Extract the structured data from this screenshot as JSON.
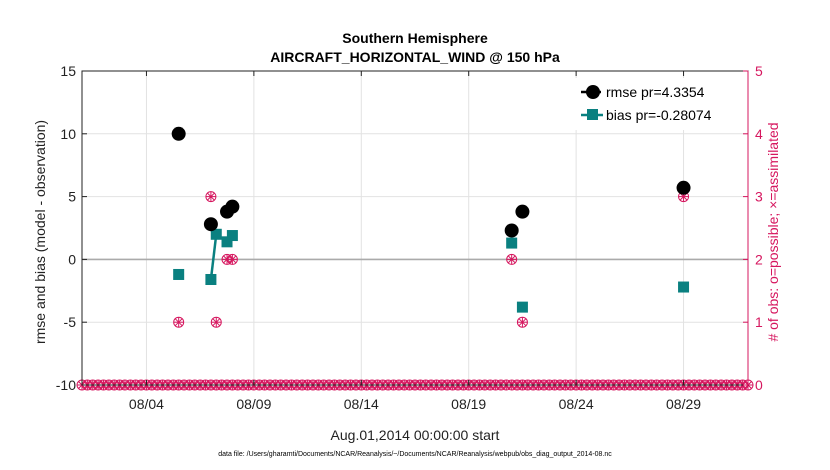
{
  "chart_data": {
    "type": "scatter",
    "title": "Southern Hemisphere",
    "subtitle": "AIRCRAFT_HORIZONTAL_WIND @ 150 hPa",
    "xlabel": "Aug.01,2014 00:00:00 start",
    "ylabel": "rmse and bias (model - observation)",
    "ylabel_right": "# of obs: o=possible; ×=assimilated",
    "footer": "data file: /Users/gharamti/Documents/NCAR/Reanalysis/~/Documents/NCAR/Reanalysis/webpub/obs_diag_output_2014-08.nc",
    "xlim": [
      1,
      32
    ],
    "ylim": [
      -10,
      15
    ],
    "ylim_right": [
      0,
      5
    ],
    "x_ticks": [
      4,
      9,
      14,
      19,
      24,
      29
    ],
    "x_tick_labels": [
      "08/04",
      "08/09",
      "08/14",
      "08/19",
      "08/24",
      "08/29"
    ],
    "y_ticks": [
      15,
      10,
      5,
      0,
      -5,
      -10
    ],
    "y_tick_labels": [
      "15",
      "10",
      "5",
      "0",
      "-5",
      "-10"
    ],
    "y_ticks_right": [
      5,
      4,
      3,
      2,
      1,
      0
    ],
    "y_tick_labels_right": [
      "5",
      "4",
      "3",
      "2",
      "1",
      "0"
    ],
    "grid": true,
    "zero_line": 0,
    "legend_position": "top-right",
    "series": [
      {
        "name": "rmse pr=4.3354",
        "color": "#000000",
        "marker": "circle",
        "points": [
          {
            "x": 5.5,
            "y": 10.0
          },
          {
            "x": 7.0,
            "y": 2.8
          },
          {
            "x": 7.75,
            "y": 3.8
          },
          {
            "x": 8.0,
            "y": 4.2
          },
          {
            "x": 21.0,
            "y": 2.3
          },
          {
            "x": 21.5,
            "y": 3.8
          },
          {
            "x": 29.0,
            "y": 5.7
          }
        ]
      },
      {
        "name": "bias pr=-0.28074",
        "color": "#0a8080",
        "marker": "square",
        "points": [
          {
            "x": 5.5,
            "y": -1.2
          },
          {
            "x": 7.0,
            "y": -1.6
          },
          {
            "x": 7.25,
            "y": 2.0
          },
          {
            "x": 7.75,
            "y": 1.4
          },
          {
            "x": 8.0,
            "y": 1.9
          },
          {
            "x": 21.0,
            "y": 1.3
          },
          {
            "x": 21.5,
            "y": -3.8
          },
          {
            "x": 29.0,
            "y": -2.2
          }
        ],
        "connected_segments": [
          [
            1,
            2
          ]
        ]
      },
      {
        "name": "obs possible",
        "color": "#d6175f",
        "marker": "circle-open",
        "axis": "right",
        "points": [
          {
            "x": 5.5,
            "y": 1
          },
          {
            "x": 7.0,
            "y": 3
          },
          {
            "x": 7.25,
            "y": 1
          },
          {
            "x": 7.75,
            "y": 2
          },
          {
            "x": 8.0,
            "y": 2
          },
          {
            "x": 21.0,
            "y": 2
          },
          {
            "x": 21.5,
            "y": 1
          },
          {
            "x": 29.0,
            "y": 3
          }
        ]
      }
    ],
    "zero_obs_marker_color": "#d6175f"
  }
}
